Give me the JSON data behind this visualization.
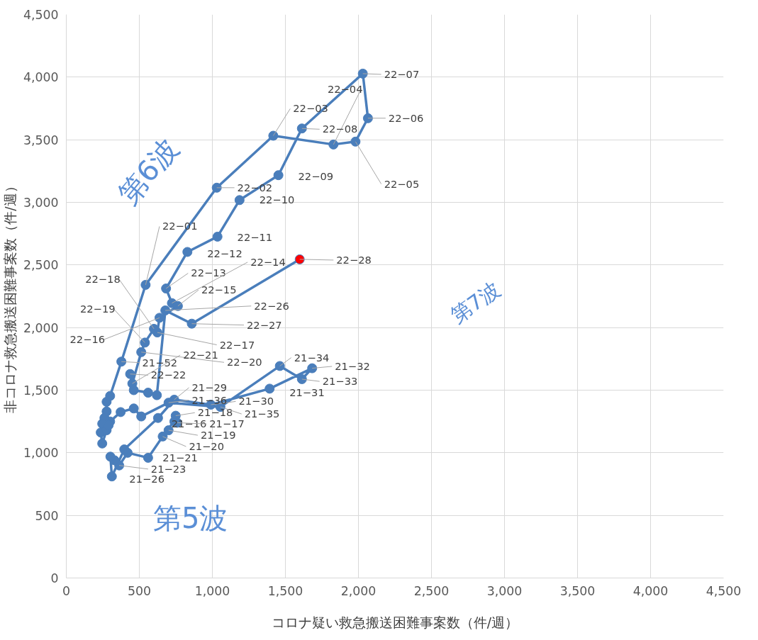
{
  "chart_data": {
    "type": "line",
    "xlabel": "コロナ疑い救急搬送困難事案数（件/週）",
    "ylabel": "非コロナ救急搬送困難事案数（件/週）",
    "xlim": [
      0,
      4500
    ],
    "ylim": [
      0,
      4500
    ],
    "xticks": [
      0,
      {
        "value": 500,
        "label": "500"
      },
      {
        "value": 1000,
        "label": "1,000"
      },
      {
        "value": 1500,
        "label": "1,500"
      },
      {
        "value": 2000,
        "label": "2,000"
      },
      {
        "value": 2500,
        "label": "2,500"
      },
      {
        "value": 3000,
        "label": "3,000"
      },
      {
        "value": 3500,
        "label": "3,500"
      },
      {
        "value": 4000,
        "label": "4,000"
      },
      {
        "value": 4500,
        "label": "4,500"
      }
    ],
    "yticks": [
      0,
      {
        "value": 500,
        "label": "500"
      },
      {
        "value": 1000,
        "label": "1,000"
      },
      {
        "value": 1500,
        "label": "1,500"
      },
      {
        "value": 2000,
        "label": "2,000"
      },
      {
        "value": 2500,
        "label": "2,500"
      },
      {
        "value": 3000,
        "label": "3,000"
      },
      {
        "value": 3500,
        "label": "3,500"
      },
      {
        "value": 4000,
        "label": "4,000"
      },
      {
        "value": 4500,
        "label": "4,500"
      }
    ],
    "grid": true,
    "marker": "circle",
    "line_style": "solid",
    "series": [
      {
        "color": "#4a7ebb",
        "x": [
          740,
          760,
          749,
          700,
          660,
          560,
          420,
          362,
          330,
          302,
          312,
          397,
          628,
          739,
          990,
          1392,
          1683,
          1613,
          1462,
          1055,
          700,
          513,
          462,
          372,
          300,
          261,
          246,
          236,
          246,
          276,
          290,
          276,
          276,
          300,
          377,
          543,
          1030,
          1417,
          1829,
          1980,
          2065,
          2030,
          1613,
          1452,
          1186,
          1035,
          829,
          683,
          723,
          764,
          638,
          623,
          600,
          538,
          513,
          452,
          437,
          462,
          560,
          620,
          678,
          859,
          1598
        ],
        "values": [
          1250,
          1240,
          1296,
          1180,
          1130,
          960,
          1000,
          899,
          940,
          969,
          811,
          1027,
          1278,
          1424,
          1384,
          1512,
          1675,
          1588,
          1693,
          1366,
          1400,
          1290,
          1354,
          1325,
          1250,
          1278,
          1232,
          1162,
          1074,
          1180,
          1220,
          1330,
          1407,
          1454,
          1728,
          2341,
          3117,
          3532,
          3462,
          3485,
          3672,
          4028,
          3590,
          3217,
          3018,
          2726,
          2604,
          2312,
          2195,
          2172,
          2078,
          1961,
          1990,
          1880,
          1804,
          1553,
          1629,
          1500,
          1480,
          1460,
          2137,
          2031,
          2545
        ],
        "colors": [
          "#4a7ebb",
          "#4a7ebb",
          "#4a7ebb",
          "#4a7ebb",
          "#4a7ebb",
          "#4a7ebb",
          "#4a7ebb",
          "#4a7ebb",
          "#4a7ebb",
          "#4a7ebb",
          "#4a7ebb",
          "#4a7ebb",
          "#4a7ebb",
          "#4a7ebb",
          "#4a7ebb",
          "#4a7ebb",
          "#4a7ebb",
          "#4a7ebb",
          "#4a7ebb",
          "#4a7ebb",
          "#4a7ebb",
          "#4a7ebb",
          "#4a7ebb",
          "#4a7ebb",
          "#4a7ebb",
          "#4a7ebb",
          "#4a7ebb",
          "#4a7ebb",
          "#4a7ebb",
          "#4a7ebb",
          "#4a7ebb",
          "#4a7ebb",
          "#4a7ebb",
          "#4a7ebb",
          "#4a7ebb",
          "#4a7ebb",
          "#4a7ebb",
          "#4a7ebb",
          "#4a7ebb",
          "#4a7ebb",
          "#4a7ebb",
          "#4a7ebb",
          "#4a7ebb",
          "#4a7ebb",
          "#4a7ebb",
          "#4a7ebb",
          "#4a7ebb",
          "#4a7ebb",
          "#4a7ebb",
          "#4a7ebb",
          "#4a7ebb",
          "#4a7ebb",
          "#4a7ebb",
          "#4a7ebb",
          "#4a7ebb",
          "#4a7ebb",
          "#4a7ebb",
          "#4a7ebb",
          "#4a7ebb",
          "#4a7ebb",
          "#4a7ebb",
          "#4a7ebb",
          "#ff0000"
        ]
      }
    ],
    "annotations": [
      "第6波",
      "第7波",
      "第5波",
      {
        "text": "21−16",
        "x": 740,
        "y": 1250
      },
      {
        "text": "21−17",
        "x": 760,
        "y": 1240
      },
      {
        "text": "21−18",
        "x": 749,
        "y": 1296
      },
      {
        "text": "21−19",
        "x": 700,
        "y": 1180
      },
      {
        "text": "21−20",
        "x": 660,
        "y": 1130
      },
      {
        "text": "21−21",
        "x": 560,
        "y": 960
      },
      {
        "text": "21−23",
        "x": 362,
        "y": 899
      },
      {
        "text": "21−26",
        "x": 312,
        "y": 811
      },
      {
        "text": "21−29",
        "x": 739,
        "y": 1424
      },
      {
        "text": "21−30",
        "x": 990,
        "y": 1384
      },
      {
        "text": "21−31",
        "x": 1392,
        "y": 1512
      },
      {
        "text": "21−32",
        "x": 1683,
        "y": 1675
      },
      {
        "text": "21−33",
        "x": 1613,
        "y": 1588
      },
      {
        "text": "21−34",
        "x": 1462,
        "y": 1693
      },
      {
        "text": "21−35",
        "x": 1055,
        "y": 1366
      },
      {
        "text": "21−36",
        "x": 700,
        "y": 1400
      },
      {
        "text": "21−52",
        "x": 377,
        "y": 1728
      },
      {
        "text": "22−01",
        "x": 543,
        "y": 2341
      },
      {
        "text": "22−02",
        "x": 1030,
        "y": 3117
      },
      {
        "text": "22−03",
        "x": 1417,
        "y": 3532
      },
      {
        "text": "22−04",
        "x": 1829,
        "y": 3462
      },
      {
        "text": "22−05",
        "x": 1980,
        "y": 3485
      },
      {
        "text": "22−06",
        "x": 2065,
        "y": 3672
      },
      {
        "text": "22−07",
        "x": 2030,
        "y": 4028
      },
      {
        "text": "22−08",
        "x": 1613,
        "y": 3590
      },
      {
        "text": "22−09",
        "x": 1452,
        "y": 3217
      },
      {
        "text": "22−10",
        "x": 1186,
        "y": 3018
      },
      {
        "text": "22−11",
        "x": 1035,
        "y": 2726
      },
      {
        "text": "22−12",
        "x": 829,
        "y": 2604
      },
      {
        "text": "22−13",
        "x": 683,
        "y": 2312
      },
      {
        "text": "22−14",
        "x": 723,
        "y": 2195
      },
      {
        "text": "22−15",
        "x": 764,
        "y": 2172
      },
      {
        "text": "22−16",
        "x": 638,
        "y": 2078
      },
      {
        "text": "22−17",
        "x": 623,
        "y": 1961
      },
      {
        "text": "22−18",
        "x": 600,
        "y": 1990
      },
      {
        "text": "22−19",
        "x": 538,
        "y": 1880
      },
      {
        "text": "22−20",
        "x": 513,
        "y": 1804
      },
      {
        "text": "22−21",
        "x": 452,
        "y": 1553
      },
      {
        "text": "22−22",
        "x": 437,
        "y": 1629
      },
      {
        "text": "22−26",
        "x": 678,
        "y": 2137
      },
      {
        "text": "22−27",
        "x": 859,
        "y": 2031
      },
      {
        "text": "22−28",
        "x": 1598,
        "y": 2545
      }
    ]
  }
}
